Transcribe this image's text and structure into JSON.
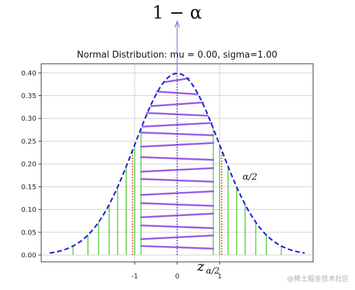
{
  "chart_data": {
    "type": "line",
    "title": "Normal Distribution: mu = 0.00, sigma=1.00",
    "xlabel": "",
    "ylabel": "",
    "mu": 0.0,
    "sigma": 1.0,
    "xlim": [
      -3.2,
      3.2
    ],
    "ylim": [
      -0.015,
      0.42
    ],
    "grid": true,
    "x_ticks": [
      -1,
      0,
      1
    ],
    "x_tick_labels": [
      "-1",
      "0",
      "1"
    ],
    "y_ticks": [
      0.0,
      0.05,
      0.1,
      0.15,
      0.2,
      0.25,
      0.3,
      0.35,
      0.4
    ],
    "y_tick_labels": [
      "0.00",
      "0.05",
      "0.10",
      "0.15",
      "0.20",
      "0.25",
      "0.30",
      "0.35",
      "0.40"
    ],
    "critical_value": 1.05,
    "series": [
      {
        "role": "pdf-curve",
        "x": [
          -3.0,
          -2.5,
          -2.0,
          -1.5,
          -1.0,
          -0.5,
          0.0,
          0.5,
          1.0,
          1.5,
          2.0,
          2.5,
          3.0
        ],
        "y": [
          0.004,
          0.018,
          0.054,
          0.13,
          0.242,
          0.352,
          0.399,
          0.352,
          0.242,
          0.13,
          0.054,
          0.018,
          0.004
        ]
      },
      {
        "role": "tail-area-lines",
        "x": [
          -2.45,
          -2.1,
          -1.85,
          -1.6,
          -1.4,
          -1.2,
          -1.0,
          -0.85,
          0.85,
          1.0,
          1.2,
          1.4,
          1.6,
          1.85,
          2.1,
          2.45
        ],
        "y": [
          0.02,
          0.044,
          0.072,
          0.111,
          0.15,
          0.194,
          0.242,
          0.278,
          0.278,
          0.242,
          0.194,
          0.15,
          0.111,
          0.072,
          0.044,
          0.02
        ]
      },
      {
        "role": "center-area-lines",
        "y": [
          0.384,
          0.356,
          0.331,
          0.309,
          0.286,
          0.266,
          0.242,
          0.212,
          0.187,
          0.164,
          0.136,
          0.111,
          0.087,
          0.062,
          0.039,
          0.017
        ]
      }
    ],
    "annotations": {
      "top_label": "1 − α",
      "right_label": "α/2",
      "critical_label_main": "z",
      "critical_label_sub": "α/2"
    },
    "colors": {
      "curve": "#1f1fd6",
      "tail_lines": "#66d24a",
      "center_lines": "#9b5de5",
      "critical_lines": "#e02020",
      "mean_line": "#2a2ad8",
      "arrow": "#9b6bd6",
      "grid": "#d0d0d0",
      "axes": "#333333"
    }
  },
  "watermark": "@稀土掘金技术社区"
}
